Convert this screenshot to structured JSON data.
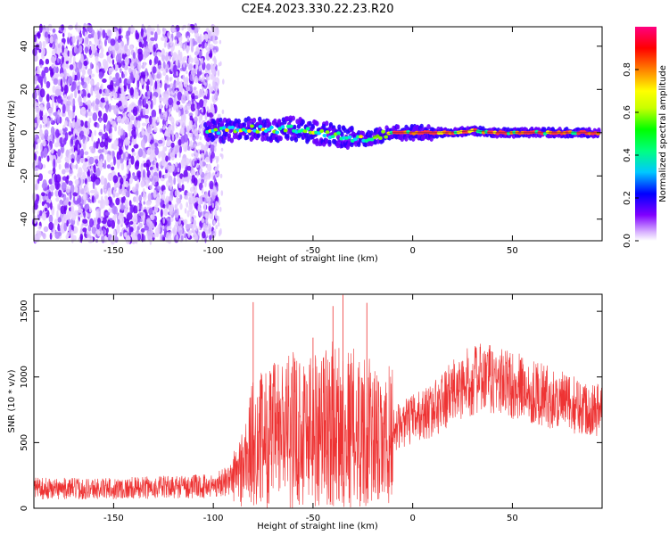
{
  "title": "C2E4.2023.330.22.23.R20",
  "colors": {
    "snr_line": "#ee3333",
    "ridge": "#ff2244",
    "frame": "#000000"
  },
  "chart_data": [
    {
      "type": "heatmap",
      "title": "",
      "xlabel": "Height of straight line (km)",
      "ylabel": "Frequency (Hz)",
      "xlim": [
        -190,
        95
      ],
      "ylim": [
        -50,
        49
      ],
      "xticks": [
        -150,
        -100,
        -50,
        0,
        50
      ],
      "yticks": [
        40,
        20,
        0,
        -20,
        -40
      ],
      "ridge": {
        "x": [
          -105,
          -95,
          -80,
          -70,
          -60,
          -50,
          -40,
          -30,
          -25,
          -20,
          -10,
          0,
          10,
          20,
          30,
          40,
          50,
          60,
          70,
          80,
          95
        ],
        "y": [
          0,
          1,
          2,
          1,
          2,
          0,
          -1,
          -3,
          -3,
          -2,
          0,
          0,
          0,
          0,
          1,
          0,
          0,
          0,
          0,
          0,
          0
        ]
      },
      "noise_region": [
        -190,
        -100
      ],
      "colorbar": {
        "label": "Normalized spectral amplitude",
        "range": [
          0.0,
          1.0
        ],
        "ticks": [
          0.0,
          0.2,
          0.4,
          0.6,
          0.8
        ],
        "colormap": "hsv"
      }
    },
    {
      "type": "line",
      "title": "",
      "xlabel": "Height of straight line (km)",
      "ylabel": "SNR (10 * v/v)",
      "xlim": [
        -190,
        95
      ],
      "ylim": [
        0,
        1630
      ],
      "xticks": [
        -150,
        -100,
        -50,
        0,
        50
      ],
      "yticks": [
        0,
        500,
        1000,
        1500
      ],
      "envelope": {
        "x": [
          -190,
          -150,
          -100,
          -90,
          -85,
          -80,
          -70,
          -60,
          -50,
          -40,
          -30,
          -20,
          -15,
          -10,
          0,
          10,
          20,
          30,
          40,
          50,
          60,
          70,
          80,
          95
        ],
        "y": [
          150,
          150,
          170,
          230,
          320,
          500,
          560,
          600,
          620,
          640,
          620,
          560,
          450,
          600,
          680,
          750,
          880,
          980,
          980,
          940,
          890,
          840,
          790,
          750
        ]
      },
      "spikes": [
        {
          "x": -80,
          "y": 1570
        },
        {
          "x": -50,
          "y": 1300
        },
        {
          "x": -40,
          "y": 1540
        },
        {
          "x": -35,
          "y": 1625
        },
        {
          "x": -23,
          "y": 1565
        }
      ]
    }
  ]
}
